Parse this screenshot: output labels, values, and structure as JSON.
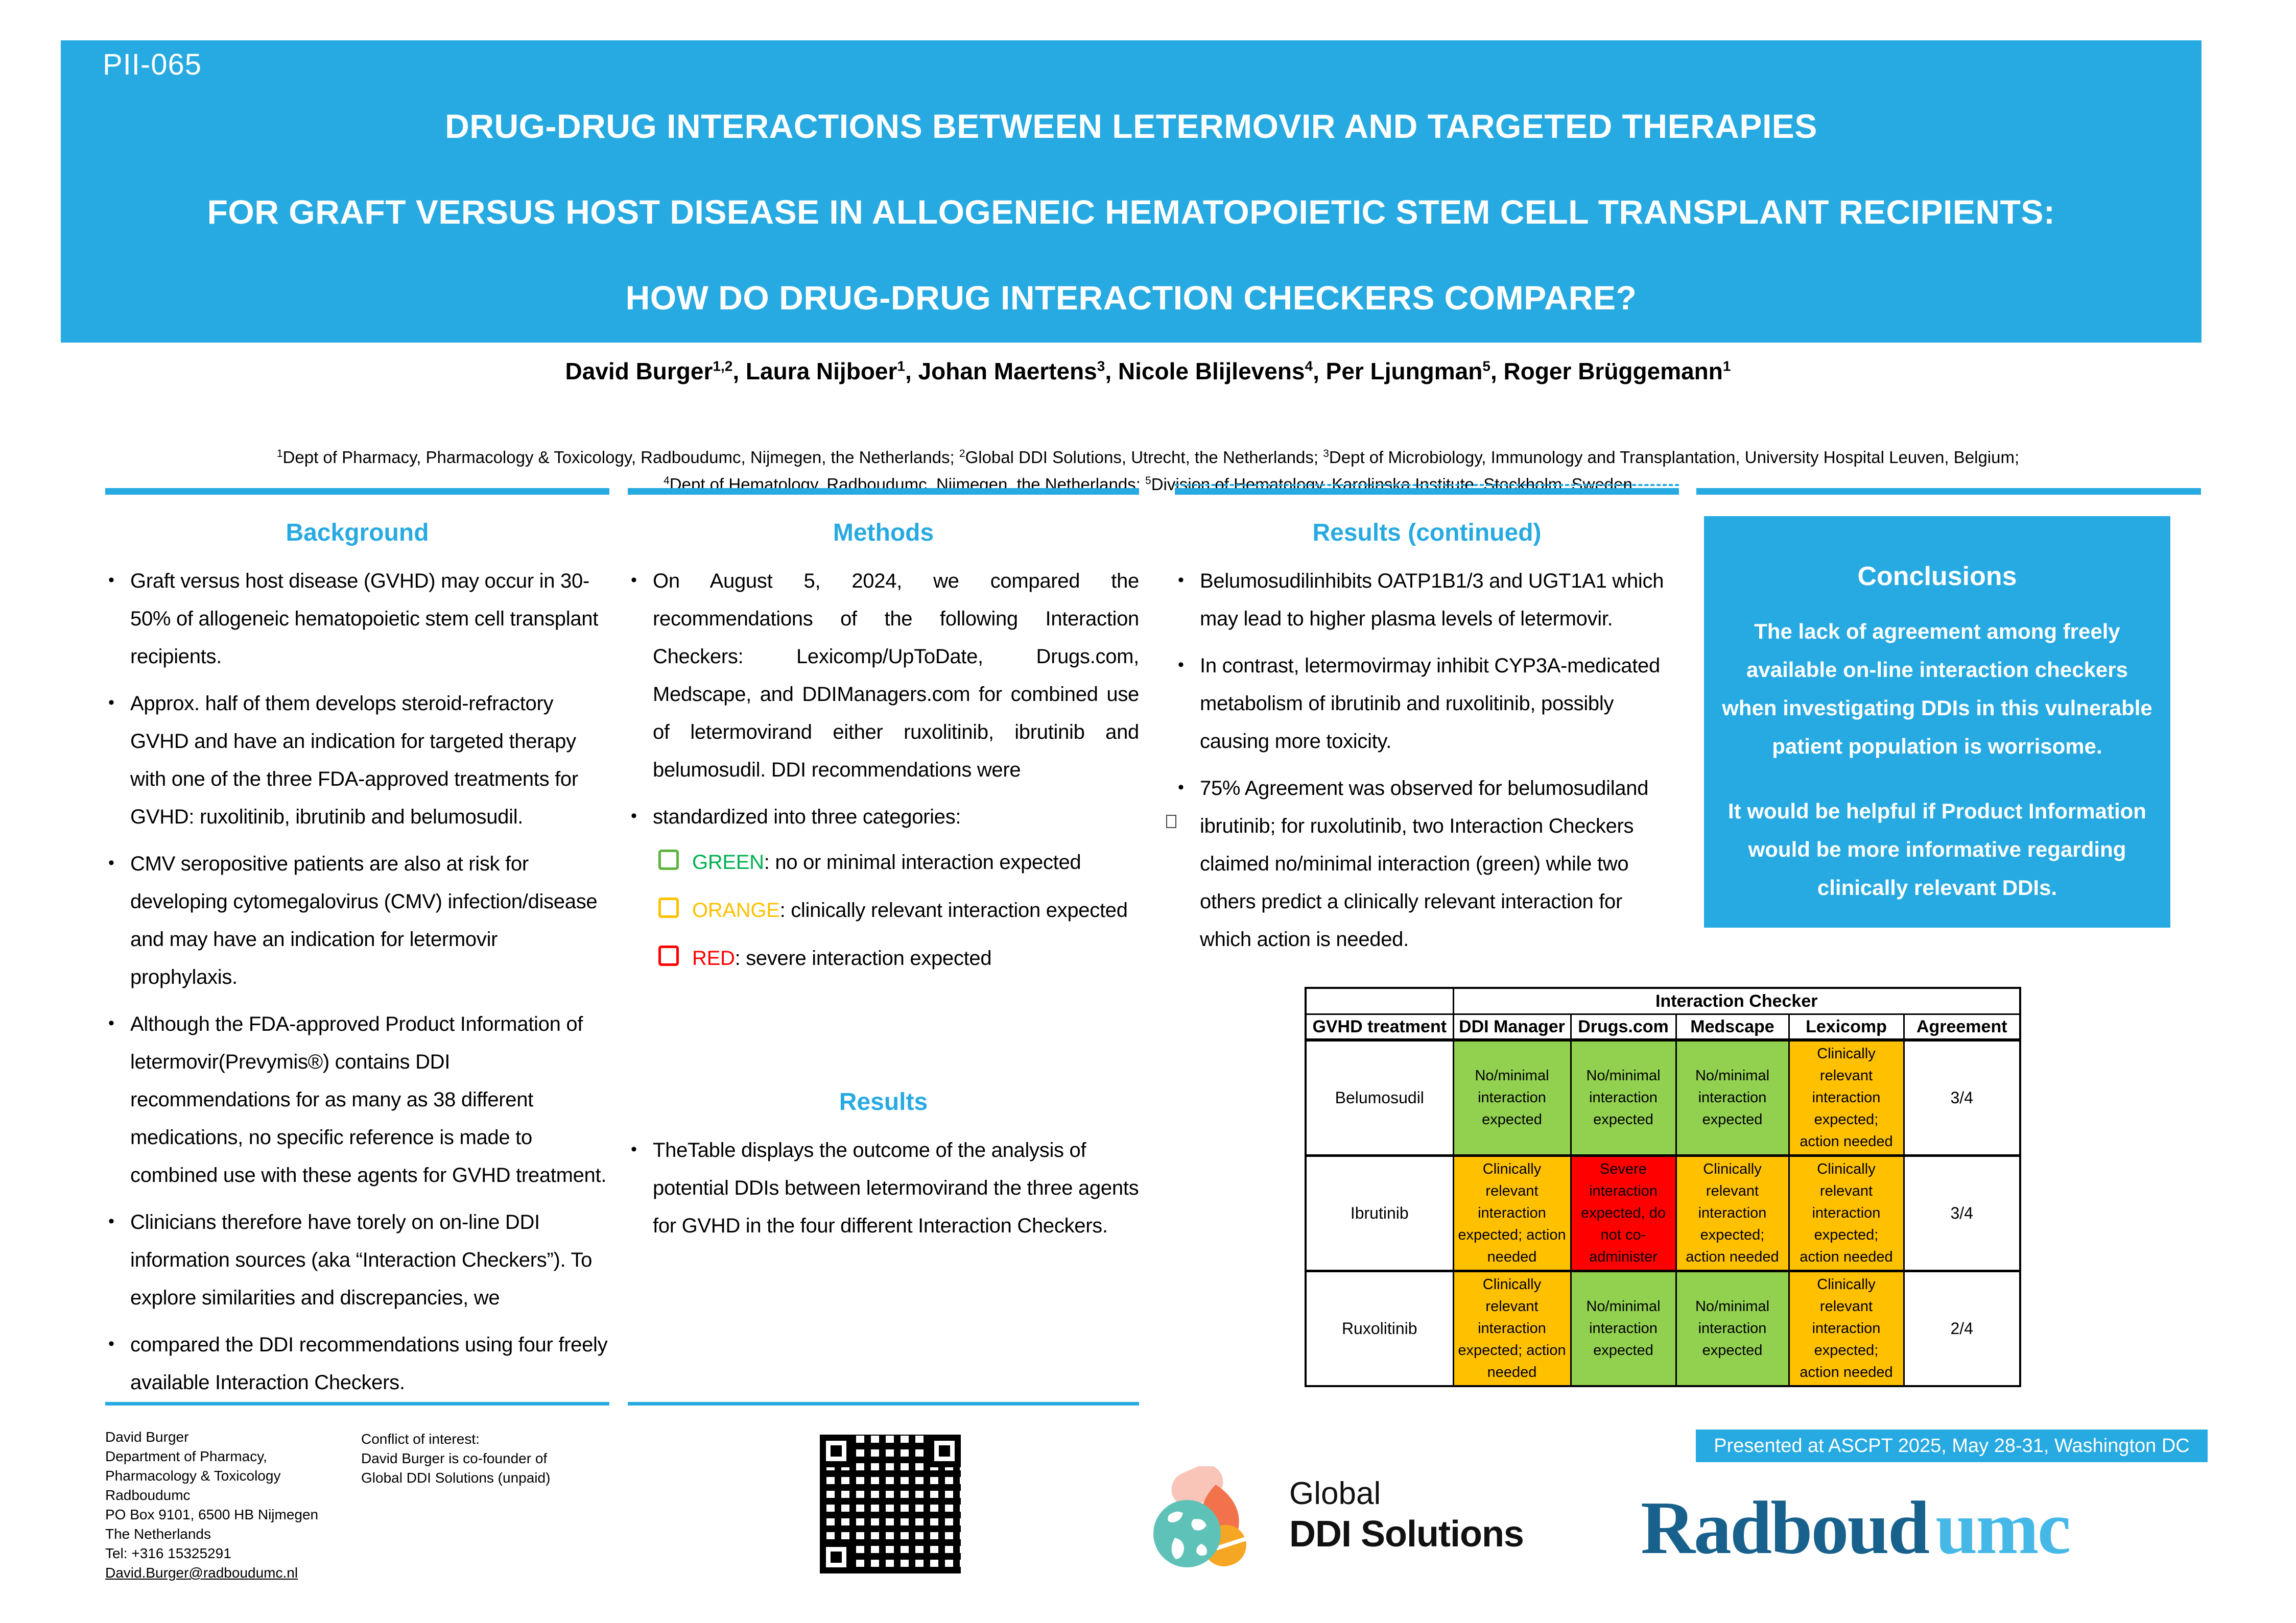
{
  "poster": {
    "id": "PII-065",
    "title_lines": [
      "DRUG-DRUG INTERACTIONS BETWEEN LETERMOVIR AND TARGETED THERAPIES",
      "FOR GRAFT VERSUS HOST DISEASE IN ALLOGENEIC HEMATOPOIETIC STEM CELL TRANSPLANT RECIPIENTS:",
      "HOW DO DRUG-DRUG INTERACTION CHECKERS COMPARE?"
    ],
    "authors": [
      {
        "name": "David Burger",
        "sup": "1,2"
      },
      {
        "name": "Laura Nijboer",
        "sup": "1"
      },
      {
        "name": "Johan Maertens",
        "sup": "3"
      },
      {
        "name": "Nicole Blijlevens",
        "sup": "4"
      },
      {
        "name": "Per Ljungman",
        "sup": "5"
      },
      {
        "name": "Roger Brüggemann",
        "sup": "1"
      }
    ],
    "affiliation_lines": [
      [
        {
          "sup": "1",
          "text": "Dept of Pharmacy, Pharmacology & Toxicology, Radboudumc, Nijmegen, the Netherlands; "
        },
        {
          "sup": "2",
          "text": "Global DDI Solutions, Utrecht, the Netherlands; "
        },
        {
          "sup": "3",
          "text": "Dept of Microbiology, Immunology and Transplantation, University Hospital Leuven, Belgium;"
        }
      ],
      [
        {
          "sup": "4",
          "text": "Dept of Hematology, Radboudumc, Nijmegen, the Netherlands; "
        },
        {
          "sup": "5",
          "text": "Division of Hematology, Karolinska Institute, Stockholm, Sweden"
        }
      ]
    ]
  },
  "background": {
    "heading": "Background",
    "bullets": [
      "Graft versus host disease (GVHD) may occur in 30-50% of allogeneic hematopoietic stem cell transplant recipients.",
      "Approx. half of them develops steroid-refractory GVHD and have an indication for targeted therapy with one of the three FDA-approved treatments for GVHD: ruxolitinib, ibrutinib and belumosudil.",
      "CMV seropositive patients are also at risk for developing cytomegalovirus (CMV) infection/disease and may have an indication for letermovir prophylaxis.",
      "Although the FDA-approved Product Information of letermovir(Prevymis®) contains DDI recommendations for as many as 38 different medications, no specific reference is made to combined use with these agents for GVHD treatment.",
      "Clinicians therefore have torely on on-line DDI information sources (aka “Interaction Checkers”). To explore similarities and discrepancies, we",
      "compared the DDI recommendations using four freely available Interaction Checkers."
    ]
  },
  "methods": {
    "heading": "Methods",
    "bullets": [
      "On August 5, 2024, we compared the recommendations of the following Interaction Checkers: Lexicomp/UpToDate, Drugs.com, Medscape, and DDIManagers.com for combined use of letermovirand either ruxolitinib, ibrutinib and belumosudil. DDI recommendations were",
      "standardized into three categories:"
    ],
    "categories": [
      {
        "label": "GREEN",
        "desc": ": no or minimal interaction expected",
        "color": "#00B050"
      },
      {
        "label": "ORANGE",
        "desc": ": clinically relevant interaction expected",
        "color": "#FFC000"
      },
      {
        "label": "RED",
        "desc": ": severe interaction expected",
        "color": "#FF0000"
      }
    ],
    "results_heading": "Results",
    "results_bullet": "TheTable displays the outcome of the analysis of potential DDIs between letermovirand the three agents for GVHD in the four different Interaction Checkers."
  },
  "results_continued": {
    "heading": "Results (continued)",
    "bullets": [
      "Belumosudilinhibits OATP1B1/3 and UGT1A1 which may lead to higher plasma levels of letermovir.",
      "In contrast, letermovirmay inhibit CYP3A-medicated metabolism of ibrutinib and ruxolitinib, possibly causing more toxicity.",
      "75% Agreement was observed for belumosudiland ibrutinib; for ruxolutinib, two Interaction Checkers claimed no/minimal interaction (green) while two others predict a clinically relevant interaction for which action is needed."
    ]
  },
  "conclusions": {
    "heading": "Conclusions",
    "paragraphs": [
      "The lack of agreement among freely available on-line interaction checkers when investigating DDIs in this vulnerable patient population is worrisome.",
      "It would be helpful if Product Information would be more informative regarding clinically relevant DDIs."
    ]
  },
  "table": {
    "span_header": "Interaction Checker",
    "col_headers": [
      "GVHD treatment",
      "DDI Manager",
      "Drugs.com",
      "Medscape",
      "Lexicomp",
      "Agreement"
    ],
    "rows": [
      {
        "treatment": "Belumosudil",
        "cells": [
          {
            "checker": "DDI Manager",
            "level": "green",
            "text": "No/minimal interaction expected"
          },
          {
            "checker": "Drugs.com",
            "level": "green",
            "text": "No/minimal interaction expected"
          },
          {
            "checker": "Medscape",
            "level": "green",
            "text": "No/minimal interaction expected"
          },
          {
            "checker": "Lexicomp",
            "level": "orange",
            "text": "Clinically relevant interaction expected; action needed"
          }
        ],
        "agreement": "3/4"
      },
      {
        "treatment": "Ibrutinib",
        "cells": [
          {
            "checker": "DDI Manager",
            "level": "orange",
            "text": "Clinically relevant interaction expected; action needed"
          },
          {
            "checker": "Drugs.com",
            "level": "red",
            "text": "Severe interaction expected, do not co-administer"
          },
          {
            "checker": "Medscape",
            "level": "orange",
            "text": "Clinically relevant interaction expected; action needed"
          },
          {
            "checker": "Lexicomp",
            "level": "orange",
            "text": "Clinically relevant interaction expected; action needed"
          }
        ],
        "agreement": "3/4"
      },
      {
        "treatment": "Ruxolitinib",
        "cells": [
          {
            "checker": "DDI Manager",
            "level": "orange",
            "text": "Clinically relevant interaction expected; action needed"
          },
          {
            "checker": "Drugs.com",
            "level": "green",
            "text": "No/minimal interaction expected"
          },
          {
            "checker": "Medscape",
            "level": "green",
            "text": "No/minimal interaction expected"
          },
          {
            "checker": "Lexicomp",
            "level": "orange",
            "text": "Clinically relevant interaction expected; action needed"
          }
        ],
        "agreement": "2/4"
      }
    ]
  },
  "footer": {
    "contact_lines": [
      "David Burger",
      "Department of Pharmacy,",
      "Pharmacology & Toxicology",
      "Radboudumc",
      "PO Box 9101, 6500 HB Nijmegen",
      "The Netherlands",
      "Tel: +316 15325291"
    ],
    "email": "David.Burger@radboudumc.nl",
    "conflict_lines": [
      "Conflict of interest:",
      "David Burger is co-founder of",
      "Global DDI Solutions (unpaid)"
    ],
    "presented": "Presented at ASCPT 2025, May 28-31, Washington DC",
    "ddi_logo": {
      "line1": "Global",
      "line2": "DDI Solutions"
    },
    "radboud_logo": {
      "part1": "Radboud",
      "part2": "umc"
    }
  },
  "colors": {
    "accent_cyan": "#27AAE1",
    "cell_green": "#92D050",
    "cell_orange": "#FFC000",
    "cell_red": "#FF0000",
    "radboud_dark": "#17618C",
    "radboud_light": "#45B8E8"
  }
}
